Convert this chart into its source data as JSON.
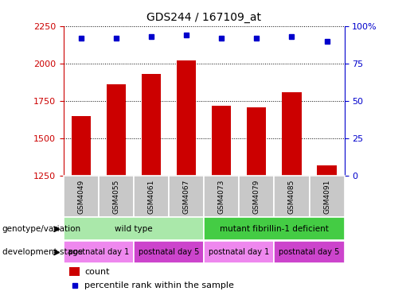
{
  "title": "GDS244 / 167109_at",
  "samples": [
    "GSM4049",
    "GSM4055",
    "GSM4061",
    "GSM4067",
    "GSM4073",
    "GSM4079",
    "GSM4085",
    "GSM4091"
  ],
  "counts": [
    1650,
    1860,
    1930,
    2020,
    1720,
    1710,
    1810,
    1320
  ],
  "percentiles": [
    92,
    92,
    93,
    94,
    92,
    92,
    93,
    90
  ],
  "ylim_left": [
    1250,
    2250
  ],
  "ylim_right": [
    0,
    100
  ],
  "yticks_left": [
    1250,
    1500,
    1750,
    2000,
    2250
  ],
  "yticks_right": [
    0,
    25,
    50,
    75,
    100
  ],
  "bar_color": "#cc0000",
  "dot_color": "#0000cc",
  "label_bg_color": "#c8c8c8",
  "genotype_groups": [
    {
      "label": "wild type",
      "start": 0,
      "end": 4,
      "color": "#aae8aa"
    },
    {
      "label": "mutant fibrillin-1 deficient",
      "start": 4,
      "end": 8,
      "color": "#44cc44"
    }
  ],
  "dev_stage_groups": [
    {
      "label": "postnatal day 1",
      "start": 0,
      "end": 2,
      "color": "#ee88ee"
    },
    {
      "label": "postnatal day 5",
      "start": 2,
      "end": 4,
      "color": "#cc44cc"
    },
    {
      "label": "postnatal day 1",
      "start": 4,
      "end": 6,
      "color": "#ee88ee"
    },
    {
      "label": "postnatal day 5",
      "start": 6,
      "end": 8,
      "color": "#cc44cc"
    }
  ],
  "left_axis_color": "#cc0000",
  "right_axis_color": "#0000cc",
  "fig_width": 5.15,
  "fig_height": 3.66,
  "dpi": 100
}
